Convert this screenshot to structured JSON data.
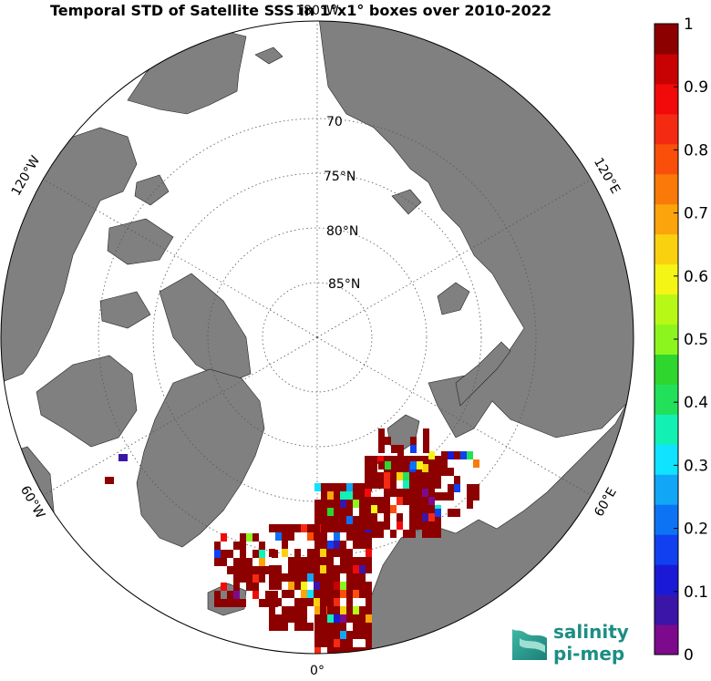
{
  "title": "Temporal STD of Satellite SSS in 1°x1° boxes over 2010-2022",
  "map": {
    "projection": "north-polar-stereographic",
    "land_color": "#808080",
    "ice_color": "#ffffff",
    "ocean_nodata_color": "#ffffff",
    "latitude_labels": [
      {
        "lat": 70,
        "text": "70"
      },
      {
        "lat": 75,
        "text": "75°N"
      },
      {
        "lat": 80,
        "text": "80°N"
      },
      {
        "lat": 85,
        "text": "85°N"
      }
    ],
    "longitude_labels": [
      {
        "lon": 180,
        "text": "180°W"
      },
      {
        "lon": -120,
        "text": "120°W"
      },
      {
        "lon": 120,
        "text": "120°E"
      },
      {
        "lon": -60,
        "text": "60°W"
      },
      {
        "lon": 60,
        "text": "60°E"
      },
      {
        "lon": 0,
        "text": "0°"
      }
    ]
  },
  "colorbar": {
    "min": 0,
    "max": 1,
    "ticks": [
      "0",
      "0.1",
      "0.2",
      "0.3",
      "0.4",
      "0.5",
      "0.6",
      "0.7",
      "0.8",
      "0.9",
      "1"
    ],
    "colors": [
      "#7d0a8c",
      "#3b15a8",
      "#1a1ad6",
      "#1140f0",
      "#0d73f5",
      "#12a6f7",
      "#0fe3ff",
      "#12f0b4",
      "#22e05a",
      "#2ed62e",
      "#8cf51e",
      "#b7f816",
      "#f5f515",
      "#fad10f",
      "#fba40b",
      "#f97a08",
      "#f94f0a",
      "#f52a12",
      "#f00a0a",
      "#c80202",
      "#8c0000"
    ]
  },
  "logo": {
    "line1": "salinity",
    "line2": "pi-mep"
  }
}
